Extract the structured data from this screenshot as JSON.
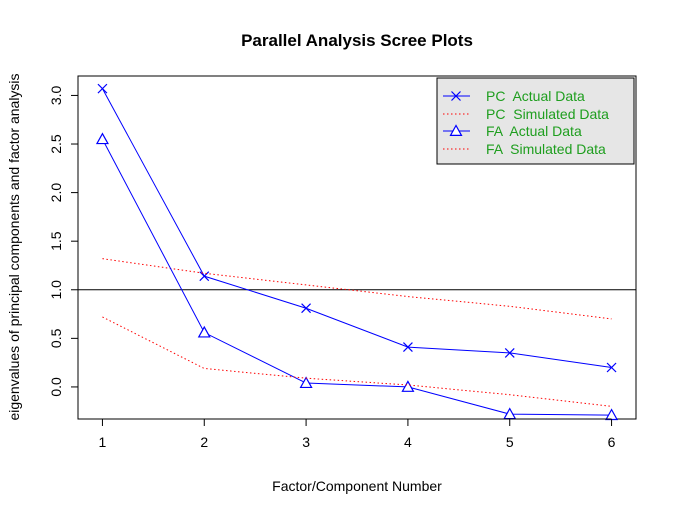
{
  "chart_data": {
    "type": "line",
    "title": "Parallel Analysis Scree Plots",
    "xlabel": "Factor/Component Number",
    "ylabel": "eigenvalues of principal components and factor analysis",
    "x": [
      1,
      2,
      3,
      4,
      5,
      6
    ],
    "xlim": [
      0.76,
      6.24
    ],
    "ylim": [
      -0.33,
      3.2
    ],
    "xticks": [
      "1",
      "2",
      "3",
      "4",
      "5",
      "6"
    ],
    "yticks": [
      "0.0",
      "0.5",
      "1.0",
      "1.5",
      "2.0",
      "2.5",
      "3.0"
    ],
    "reference_line": 1.0,
    "legend_position": "top-right",
    "series": [
      {
        "name": "PC  Actual Data",
        "values": [
          3.07,
          1.14,
          0.81,
          0.41,
          0.35,
          0.2
        ],
        "color": "#0000ff",
        "line": "solid",
        "marker": "x"
      },
      {
        "name": "PC  Simulated Data",
        "values": [
          1.32,
          1.17,
          1.05,
          0.93,
          0.83,
          0.7
        ],
        "color": "#ff0000",
        "line": "dotted",
        "marker": "none"
      },
      {
        "name": "FA  Actual Data",
        "values": [
          2.55,
          0.56,
          0.04,
          0.0,
          -0.28,
          -0.29
        ],
        "color": "#0000ff",
        "line": "solid",
        "marker": "triangle"
      },
      {
        "name": "FA  Simulated Data",
        "values": [
          0.72,
          0.19,
          0.09,
          0.02,
          -0.08,
          -0.2
        ],
        "color": "#ff0000",
        "line": "dotted",
        "marker": "none"
      }
    ]
  }
}
